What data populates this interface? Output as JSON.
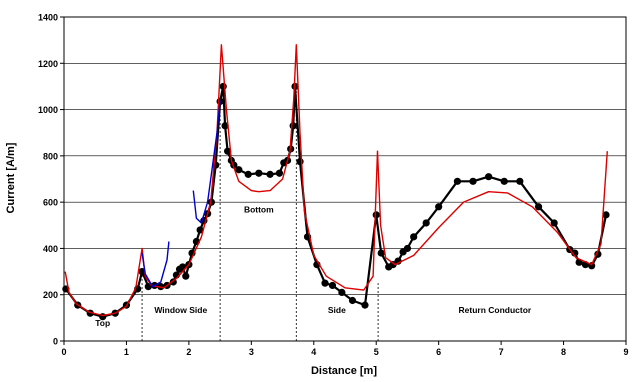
{
  "chart_data": {
    "type": "line",
    "title": "",
    "xlabel": "Distance [m]",
    "ylabel": "Current [A/m]",
    "xlim": [
      0,
      9
    ],
    "ylim": [
      0,
      1400
    ],
    "xticks": [
      0,
      1,
      2,
      3,
      4,
      5,
      6,
      7,
      8,
      9
    ],
    "yticks": [
      0,
      200,
      400,
      600,
      800,
      1000,
      1200,
      1400
    ],
    "grid": "horizontal",
    "legend": "none",
    "section_boundaries": [
      1.25,
      2.5,
      3.72,
      5.03
    ],
    "section_labels": [
      {
        "text": "Top",
        "x": 0.62,
        "y": 65
      },
      {
        "text": "Window Side",
        "x": 1.87,
        "y": 120
      },
      {
        "text": "Bottom",
        "x": 3.12,
        "y": 555
      },
      {
        "text": "Side",
        "x": 4.37,
        "y": 120
      },
      {
        "text": "Return Conductor",
        "x": 6.9,
        "y": 120
      }
    ],
    "series": [
      {
        "color": "#000000",
        "marker": "circle",
        "points": [
          [
            0.03,
            225
          ],
          [
            0.22,
            155
          ],
          [
            0.42,
            120
          ],
          [
            0.62,
            105
          ],
          [
            0.82,
            120
          ],
          [
            1.0,
            155
          ],
          [
            1.18,
            225
          ],
          [
            1.25,
            300
          ],
          [
            1.35,
            235
          ],
          [
            1.45,
            240
          ],
          [
            1.55,
            235
          ],
          [
            1.65,
            240
          ],
          [
            1.75,
            255
          ],
          [
            1.8,
            285
          ],
          [
            1.85,
            310
          ],
          [
            1.9,
            320
          ],
          [
            1.95,
            280
          ],
          [
            2.0,
            330
          ],
          [
            2.05,
            380
          ],
          [
            2.12,
            430
          ],
          [
            2.18,
            480
          ],
          [
            2.24,
            520
          ],
          [
            2.3,
            550
          ],
          [
            2.36,
            600
          ],
          [
            2.43,
            760
          ],
          [
            2.5,
            1035
          ],
          [
            2.55,
            1100
          ],
          [
            2.58,
            930
          ],
          [
            2.62,
            820
          ],
          [
            2.68,
            780
          ],
          [
            2.72,
            760
          ],
          [
            2.8,
            740
          ],
          [
            2.95,
            720
          ],
          [
            3.12,
            725
          ],
          [
            3.3,
            720
          ],
          [
            3.45,
            725
          ],
          [
            3.52,
            770
          ],
          [
            3.58,
            780
          ],
          [
            3.63,
            830
          ],
          [
            3.67,
            930
          ],
          [
            3.7,
            1100
          ],
          [
            3.78,
            775
          ],
          [
            3.9,
            450
          ],
          [
            4.05,
            330
          ],
          [
            4.18,
            250
          ],
          [
            4.3,
            240
          ],
          [
            4.45,
            210
          ],
          [
            4.62,
            175
          ],
          [
            4.82,
            155
          ],
          [
            5.0,
            545
          ],
          [
            5.08,
            380
          ],
          [
            5.2,
            320
          ],
          [
            5.27,
            330
          ],
          [
            5.35,
            345
          ],
          [
            5.43,
            385
          ],
          [
            5.5,
            400
          ],
          [
            5.6,
            450
          ],
          [
            5.8,
            510
          ],
          [
            6.0,
            580
          ],
          [
            6.3,
            690
          ],
          [
            6.55,
            690
          ],
          [
            6.8,
            710
          ],
          [
            7.05,
            690
          ],
          [
            7.3,
            690
          ],
          [
            7.6,
            580
          ],
          [
            7.85,
            510
          ],
          [
            8.1,
            395
          ],
          [
            8.18,
            380
          ],
          [
            8.25,
            340
          ],
          [
            8.35,
            330
          ],
          [
            8.45,
            325
          ],
          [
            8.55,
            375
          ],
          [
            8.68,
            545
          ]
        ]
      },
      {
        "color": "#dd0000",
        "marker": "none",
        "points": [
          [
            0.02,
            300
          ],
          [
            0.08,
            210
          ],
          [
            0.2,
            160
          ],
          [
            0.4,
            125
          ],
          [
            0.62,
            110
          ],
          [
            0.82,
            120
          ],
          [
            1.0,
            150
          ],
          [
            1.15,
            230
          ],
          [
            1.25,
            400
          ],
          [
            1.3,
            280
          ],
          [
            1.4,
            240
          ],
          [
            1.6,
            230
          ],
          [
            1.8,
            270
          ],
          [
            2.0,
            330
          ],
          [
            2.2,
            450
          ],
          [
            2.35,
            600
          ],
          [
            2.45,
            900
          ],
          [
            2.52,
            1280
          ],
          [
            2.6,
            1000
          ],
          [
            2.68,
            780
          ],
          [
            2.8,
            690
          ],
          [
            3.0,
            650
          ],
          [
            3.12,
            645
          ],
          [
            3.3,
            650
          ],
          [
            3.5,
            700
          ],
          [
            3.62,
            820
          ],
          [
            3.68,
            1050
          ],
          [
            3.72,
            1280
          ],
          [
            3.78,
            900
          ],
          [
            3.85,
            560
          ],
          [
            4.0,
            370
          ],
          [
            4.2,
            280
          ],
          [
            4.5,
            230
          ],
          [
            4.8,
            220
          ],
          [
            4.95,
            280
          ],
          [
            5.02,
            820
          ],
          [
            5.07,
            500
          ],
          [
            5.15,
            360
          ],
          [
            5.3,
            330
          ],
          [
            5.6,
            370
          ],
          [
            6.0,
            490
          ],
          [
            6.4,
            600
          ],
          [
            6.8,
            645
          ],
          [
            7.1,
            640
          ],
          [
            7.5,
            580
          ],
          [
            7.9,
            470
          ],
          [
            8.2,
            360
          ],
          [
            8.45,
            330
          ],
          [
            8.6,
            420
          ],
          [
            8.7,
            820
          ]
        ]
      },
      {
        "color": "#0000cc",
        "marker": "none",
        "points": [
          [
            1.25,
            380
          ],
          [
            1.3,
            290
          ],
          [
            1.42,
            235
          ],
          [
            1.55,
            255
          ],
          [
            1.65,
            350
          ],
          [
            1.68,
            430
          ]
        ]
      },
      {
        "color": "#0000cc",
        "marker": "none",
        "points": [
          [
            2.07,
            650
          ],
          [
            2.12,
            530
          ],
          [
            2.2,
            510
          ],
          [
            2.3,
            600
          ],
          [
            2.38,
            760
          ],
          [
            2.45,
            900
          ],
          [
            2.5,
            1040
          ]
        ]
      }
    ]
  }
}
